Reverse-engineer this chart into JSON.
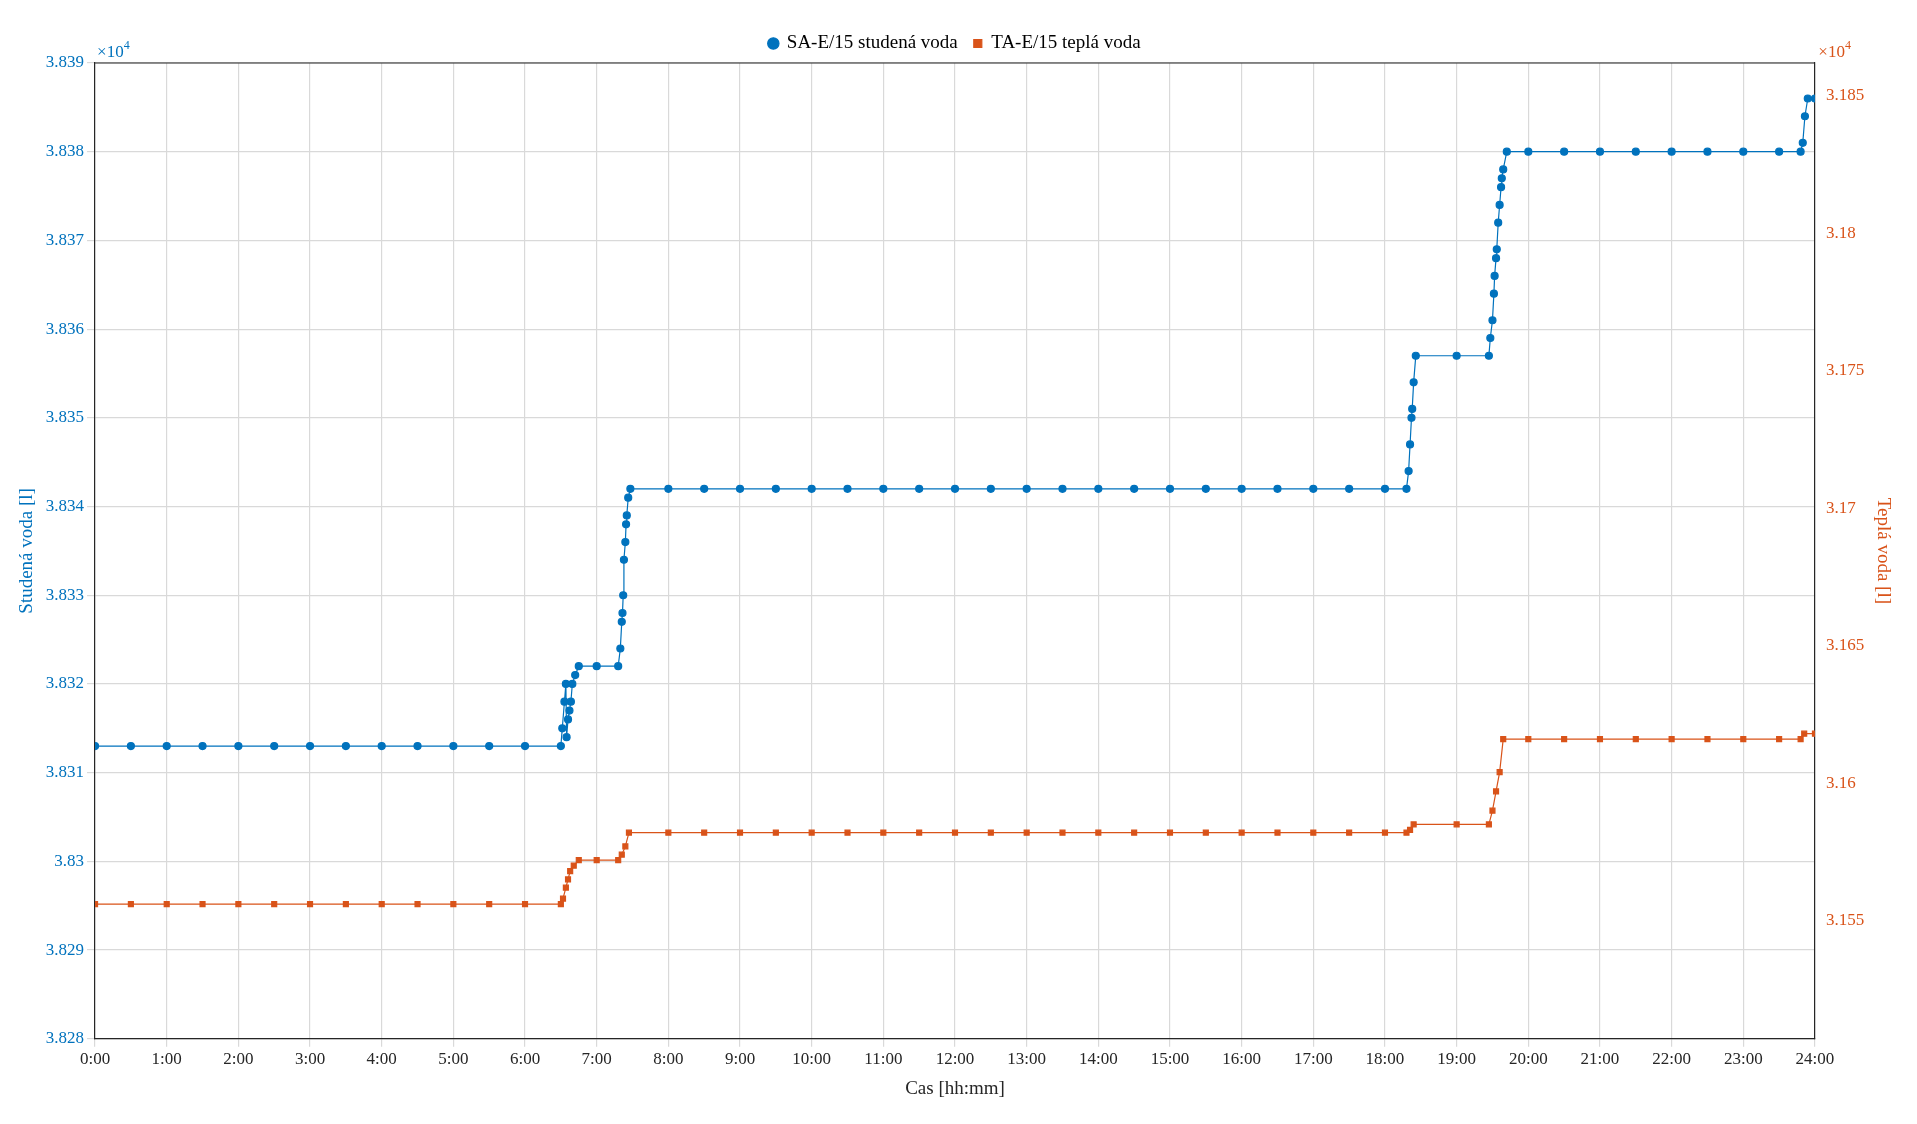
{
  "chart_data": {
    "type": "line",
    "xlabel": "Cas [hh:mm]",
    "ylabel": "Studená voda [l]",
    "y2label": "Teplá voda [l]",
    "annotations": [
      "×10$^{4}$",
      "×10$^{4}$"
    ],
    "xlim": [
      0,
      24
    ],
    "xticks": [
      {
        "value": 0,
        "label": "0:00"
      },
      {
        "value": 1,
        "label": "1:00"
      },
      {
        "value": 2,
        "label": "2:00"
      },
      {
        "value": 3,
        "label": "3:00"
      },
      {
        "value": 4,
        "label": "4:00"
      },
      {
        "value": 5,
        "label": "5:00"
      },
      {
        "value": 6,
        "label": "6:00"
      },
      {
        "value": 7,
        "label": "7:00"
      },
      {
        "value": 8,
        "label": "8:00"
      },
      {
        "value": 9,
        "label": "9:00"
      },
      {
        "value": 10,
        "label": "10:00"
      },
      {
        "value": 11,
        "label": "11:00"
      },
      {
        "value": 12,
        "label": "12:00"
      },
      {
        "value": 13,
        "label": "13:00"
      },
      {
        "value": 14,
        "label": "14:00"
      },
      {
        "value": 15,
        "label": "15:00"
      },
      {
        "value": 16,
        "label": "16:00"
      },
      {
        "value": 17,
        "label": "17:00"
      },
      {
        "value": 18,
        "label": "18:00"
      },
      {
        "value": 19,
        "label": "19:00"
      },
      {
        "value": 20,
        "label": "20:00"
      },
      {
        "value": 21,
        "label": "21:00"
      },
      {
        "value": 22,
        "label": "22:00"
      },
      {
        "value": 23,
        "label": "23:00"
      },
      {
        "value": 24,
        "label": "24:00"
      }
    ],
    "ylim": [
      3.828,
      3.839
    ],
    "yticks": [
      3.828,
      3.829,
      3.83,
      3.831,
      3.832,
      3.833,
      3.834,
      3.835,
      3.836,
      3.837,
      3.838,
      3.839
    ],
    "y2lim": [
      3.1507,
      3.1862
    ],
    "y2ticks": [
      3.155,
      3.16,
      3.165,
      3.17,
      3.175,
      3.18,
      3.185
    ],
    "grid": true,
    "legend": "top",
    "series": [
      {
        "name": "SA-E/15 studená voda",
        "color": "#0072bd",
        "marker": "circle",
        "x": [
          0,
          0.5,
          1,
          1.5,
          2,
          2.5,
          3,
          3.5,
          4,
          4.5,
          5,
          5.5,
          6,
          6.5,
          6.52,
          6.55,
          6.57,
          6.58,
          6.6,
          6.62,
          6.64,
          6.66,
          6.7,
          6.75,
          7,
          7.3,
          7.33,
          7.35,
          7.36,
          7.37,
          7.38,
          7.4,
          7.41,
          7.42,
          7.44,
          7.47,
          8,
          8.5,
          9,
          9.5,
          10,
          10.5,
          11,
          11.5,
          12,
          12.5,
          13,
          13.5,
          14,
          14.5,
          15,
          15.5,
          16,
          16.5,
          17,
          17.5,
          18,
          18.3,
          18.33,
          18.35,
          18.37,
          18.38,
          18.4,
          18.43,
          19,
          19.45,
          19.47,
          19.5,
          19.52,
          19.53,
          19.55,
          19.56,
          19.58,
          19.6,
          19.62,
          19.63,
          19.65,
          19.7,
          20,
          20.5,
          21,
          21.5,
          22,
          22.5,
          23,
          23.5,
          23.8,
          23.83,
          23.86,
          23.9,
          24
        ],
        "values": [
          3.8313,
          3.8313,
          3.8313,
          3.8313,
          3.8313,
          3.8313,
          3.8313,
          3.8313,
          3.8313,
          3.8313,
          3.8313,
          3.8313,
          3.8313,
          3.8313,
          3.8315,
          3.8318,
          3.832,
          3.8314,
          3.8316,
          3.8317,
          3.8318,
          3.832,
          3.8321,
          3.8322,
          3.8322,
          3.8322,
          3.8324,
          3.8327,
          3.8328,
          3.833,
          3.8334,
          3.8336,
          3.8338,
          3.8339,
          3.8341,
          3.8342,
          3.8342,
          3.8342,
          3.8342,
          3.8342,
          3.8342,
          3.8342,
          3.8342,
          3.8342,
          3.8342,
          3.8342,
          3.8342,
          3.8342,
          3.8342,
          3.8342,
          3.8342,
          3.8342,
          3.8342,
          3.8342,
          3.8342,
          3.8342,
          3.8342,
          3.8342,
          3.8344,
          3.8347,
          3.835,
          3.8351,
          3.8354,
          3.8357,
          3.8357,
          3.8357,
          3.8359,
          3.8361,
          3.8364,
          3.8366,
          3.8368,
          3.8369,
          3.8372,
          3.8374,
          3.8376,
          3.8377,
          3.8378,
          3.838,
          3.838,
          3.838,
          3.838,
          3.838,
          3.838,
          3.838,
          3.838,
          3.838,
          3.838,
          3.8381,
          3.8384,
          3.8386,
          3.8386
        ]
      },
      {
        "name": "TA-E/15 teplá voda",
        "color": "#d95319",
        "marker": "square",
        "axis": "y2",
        "x": [
          0,
          0.5,
          1,
          1.5,
          2,
          2.5,
          3,
          3.5,
          4,
          4.5,
          5,
          5.5,
          6,
          6.5,
          6.53,
          6.57,
          6.6,
          6.63,
          6.68,
          6.75,
          7,
          7.3,
          7.35,
          7.4,
          7.45,
          8,
          8.5,
          9,
          9.5,
          10,
          10.5,
          11,
          11.5,
          12,
          12.5,
          13,
          13.5,
          14,
          14.5,
          15,
          15.5,
          16,
          16.5,
          17,
          17.5,
          18,
          18.3,
          18.35,
          18.4,
          19,
          19.45,
          19.5,
          19.55,
          19.6,
          19.65,
          20,
          20.5,
          21,
          21.5,
          22,
          22.5,
          23,
          23.5,
          23.8,
          23.85,
          24
        ],
        "values": [
          3.1556,
          3.1556,
          3.1556,
          3.1556,
          3.1556,
          3.1556,
          3.1556,
          3.1556,
          3.1556,
          3.1556,
          3.1556,
          3.1556,
          3.1556,
          3.1556,
          3.1558,
          3.1562,
          3.1565,
          3.1568,
          3.157,
          3.1572,
          3.1572,
          3.1572,
          3.1574,
          3.1577,
          3.1582,
          3.1582,
          3.1582,
          3.1582,
          3.1582,
          3.1582,
          3.1582,
          3.1582,
          3.1582,
          3.1582,
          3.1582,
          3.1582,
          3.1582,
          3.1582,
          3.1582,
          3.1582,
          3.1582,
          3.1582,
          3.1582,
          3.1582,
          3.1582,
          3.1582,
          3.1582,
          3.1583,
          3.1585,
          3.1585,
          3.1585,
          3.159,
          3.1597,
          3.1604,
          3.1616,
          3.1616,
          3.1616,
          3.1616,
          3.1616,
          3.1616,
          3.1616,
          3.1616,
          3.1616,
          3.1616,
          3.1618,
          3.1618
        ]
      }
    ]
  }
}
